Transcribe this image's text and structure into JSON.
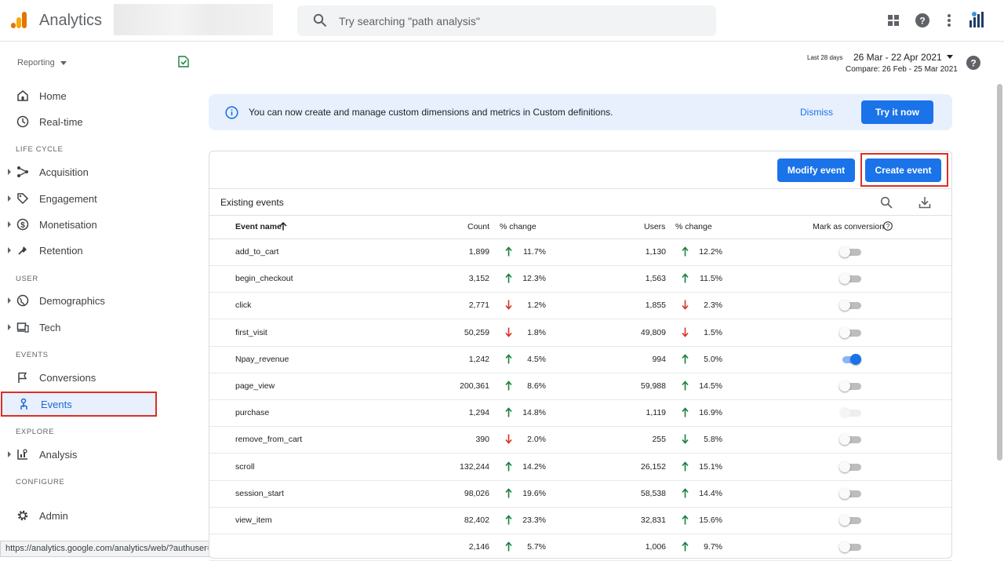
{
  "app": {
    "title": "Analytics"
  },
  "search": {
    "placeholder": "Try searching \"path analysis\""
  },
  "sidebar": {
    "reporting": "Reporting",
    "items": {
      "home": "Home",
      "realtime": "Real-time",
      "lifecycle": "LIFE CYCLE",
      "acquisition": "Acquisition",
      "engagement": "Engagement",
      "monetisation": "Monetisation",
      "retention": "Retention",
      "user": "USER",
      "demographics": "Demographics",
      "tech": "Tech",
      "events_section": "EVENTS",
      "conversions": "Conversions",
      "events": "Events",
      "explore": "EXPLORE",
      "analysis": "Analysis",
      "configure": "CONFIGURE",
      "admin": "Admin"
    }
  },
  "status_url": "https://analytics.google.com/analytics/web/?authuser=1#/m/p263545548/events/overview...",
  "date": {
    "prefix": "Last 28 days",
    "range": "26 Mar - 22 Apr 2021",
    "compare": "Compare: 26 Feb - 25 Mar 2021"
  },
  "banner": {
    "text": "You can now create and manage custom dimensions and metrics in Custom definitions.",
    "dismiss": "Dismiss",
    "try_it": "Try it now"
  },
  "card": {
    "modify_label": "Modify event",
    "create_label": "Create event",
    "existing_label": "Existing events"
  },
  "table": {
    "headers": {
      "name": "Event name",
      "count": "Count",
      "count_change": "% change",
      "users": "Users",
      "users_change": "% change",
      "conversion": "Mark as conversion"
    },
    "rows": [
      {
        "name": "add_to_cart",
        "count": "1,899",
        "count_dir": "up",
        "count_pct": "11.7%",
        "users": "1,130",
        "users_dir": "up",
        "users_pct": "12.2%",
        "conversion": "off"
      },
      {
        "name": "begin_checkout",
        "count": "3,152",
        "count_dir": "up",
        "count_pct": "12.3%",
        "users": "1,563",
        "users_dir": "up",
        "users_pct": "11.5%",
        "conversion": "off"
      },
      {
        "name": "click",
        "count": "2,771",
        "count_dir": "down",
        "count_pct": "1.2%",
        "users": "1,855",
        "users_dir": "down",
        "users_pct": "2.3%",
        "conversion": "off"
      },
      {
        "name": "first_visit",
        "count": "50,259",
        "count_dir": "down",
        "count_pct": "1.8%",
        "users": "49,809",
        "users_dir": "down",
        "users_pct": "1.5%",
        "conversion": "off"
      },
      {
        "name": "Npay_revenue",
        "count": "1,242",
        "count_dir": "up",
        "count_pct": "4.5%",
        "users": "994",
        "users_dir": "up",
        "users_pct": "5.0%",
        "conversion": "on"
      },
      {
        "name": "page_view",
        "count": "200,361",
        "count_dir": "up",
        "count_pct": "8.6%",
        "users": "59,988",
        "users_dir": "up",
        "users_pct": "14.5%",
        "conversion": "off"
      },
      {
        "name": "purchase",
        "count": "1,294",
        "count_dir": "up",
        "count_pct": "14.8%",
        "users": "1,119",
        "users_dir": "up",
        "users_pct": "16.9%",
        "conversion": "disabled"
      },
      {
        "name": "remove_from_cart",
        "count": "390",
        "count_dir": "down",
        "count_pct": "2.0%",
        "users": "255",
        "users_dir": "down-green",
        "users_pct": "5.8%",
        "conversion": "off"
      },
      {
        "name": "scroll",
        "count": "132,244",
        "count_dir": "up",
        "count_pct": "14.2%",
        "users": "26,152",
        "users_dir": "up",
        "users_pct": "15.1%",
        "conversion": "off"
      },
      {
        "name": "session_start",
        "count": "98,026",
        "count_dir": "up",
        "count_pct": "19.6%",
        "users": "58,538",
        "users_dir": "up",
        "users_pct": "14.4%",
        "conversion": "off"
      },
      {
        "name": "view_item",
        "count": "82,402",
        "count_dir": "up",
        "count_pct": "23.3%",
        "users": "32,831",
        "users_dir": "up",
        "users_pct": "15.6%",
        "conversion": "off"
      },
      {
        "name": "",
        "count": "2,146",
        "count_dir": "up",
        "count_pct": "5.7%",
        "users": "1,006",
        "users_dir": "up",
        "users_pct": "9.7%",
        "conversion": "off"
      }
    ]
  },
  "colors": {
    "accent": "#1a73e8",
    "up": "#188038",
    "down": "#d93025",
    "highlight": "#d93025"
  },
  "icons": {
    "logo": "analytics-logo-icon",
    "search": "search-icon",
    "apps": "apps-grid-icon",
    "help": "help-icon",
    "more": "more-vert-icon",
    "avatar": "avatar",
    "info": "info-icon",
    "download": "download-icon",
    "sort": "sort-up-arrow-icon"
  }
}
